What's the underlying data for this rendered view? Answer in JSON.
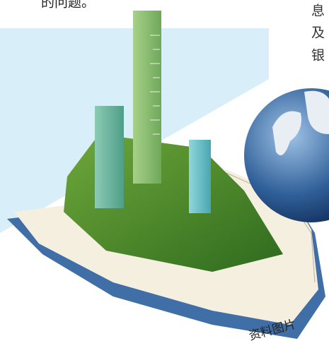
{
  "text_fragments": {
    "left": "的问题。",
    "right": [
      "息",
      "及",
      "银"
    ]
  },
  "caption": "资料图片"
}
